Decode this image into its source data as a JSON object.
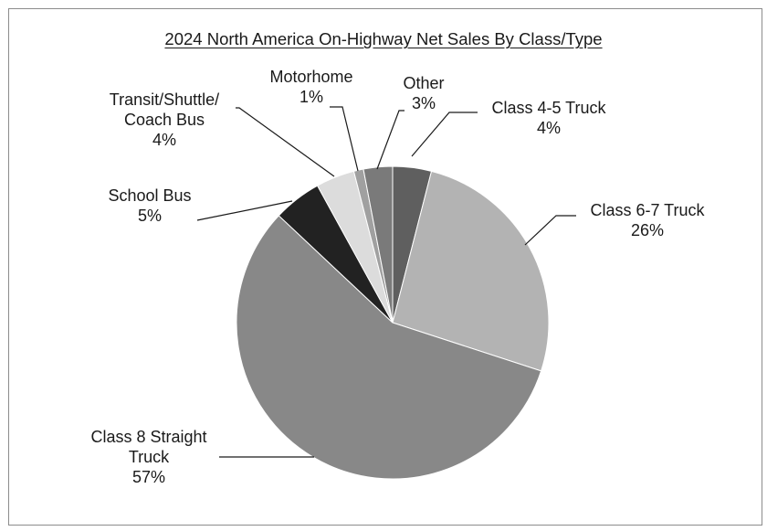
{
  "chart_data": {
    "type": "pie",
    "title": "2024 North America On-Highway Net Sales By Class/Type",
    "slices": [
      {
        "label_lines": [
          "Class 4-5 Truck",
          "4%"
        ],
        "value": 4,
        "color": "#5f5f5f"
      },
      {
        "label_lines": [
          "Class 6-7 Truck",
          "26%"
        ],
        "value": 26,
        "color": "#b3b3b3"
      },
      {
        "label_lines": [
          "Class 8 Straight",
          "Truck",
          "57%"
        ],
        "value": 57,
        "color": "#888888"
      },
      {
        "label_lines": [
          "School Bus",
          "5%"
        ],
        "value": 5,
        "color": "#222222"
      },
      {
        "label_lines": [
          "Transit/Shuttle/",
          "Coach Bus",
          "4%"
        ],
        "value": 4,
        "color": "#dcdcdc"
      },
      {
        "label_lines": [
          "Motorhome",
          "1%"
        ],
        "value": 1,
        "color": "#a0a0a0"
      },
      {
        "label_lines": [
          "Other",
          "3%"
        ],
        "value": 3,
        "color": "#7a7a7a"
      }
    ],
    "start": "12 o'clock",
    "direction": "clockwise",
    "legend": "none"
  }
}
